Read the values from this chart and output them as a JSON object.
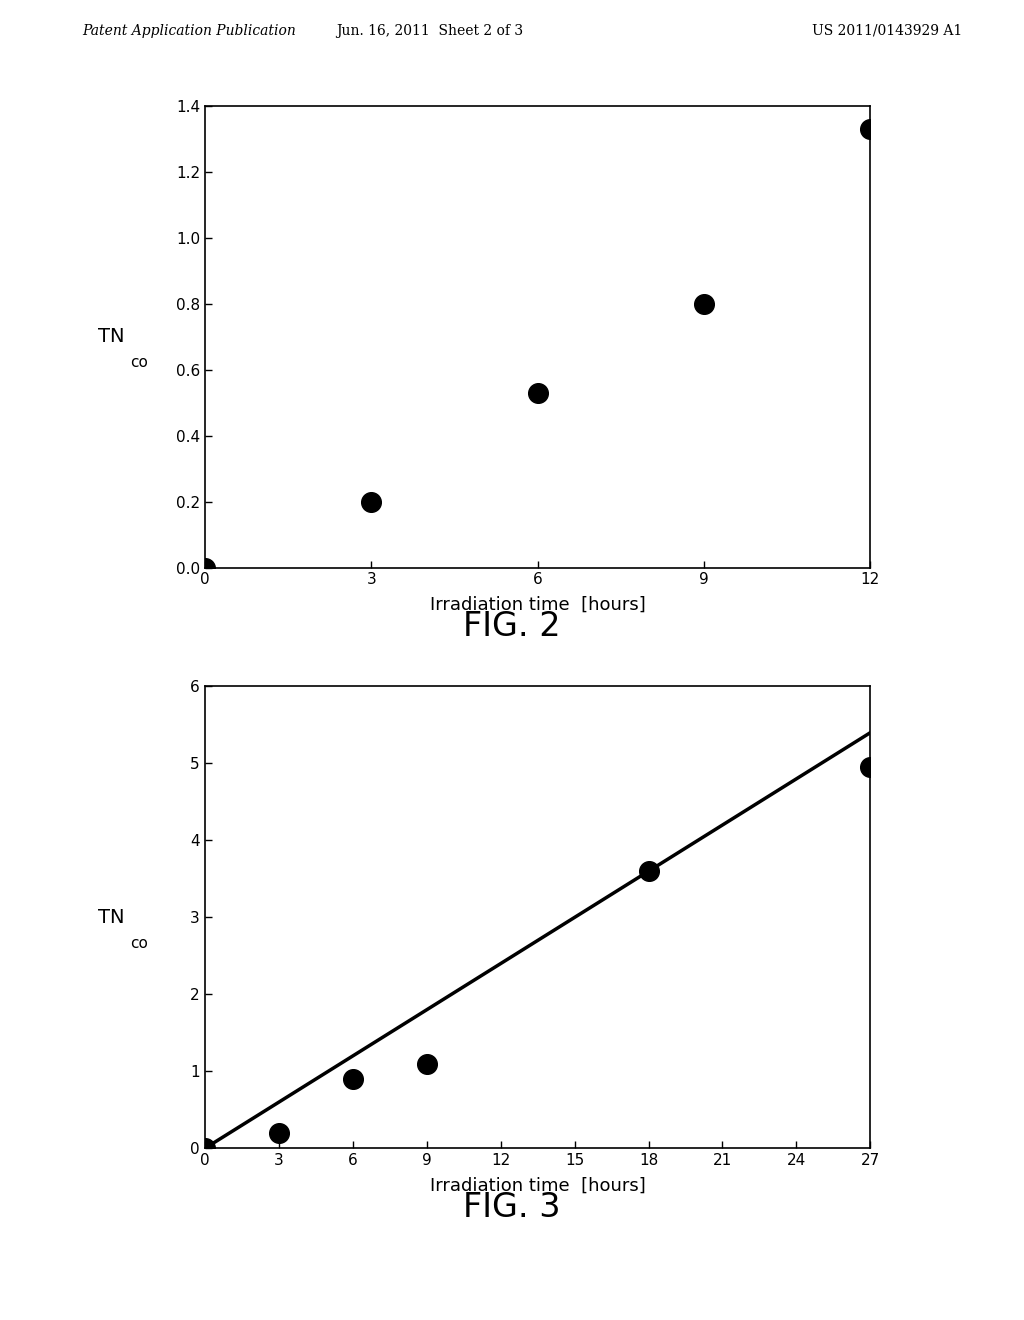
{
  "fig2": {
    "x": [
      0,
      3,
      6,
      9,
      12
    ],
    "y": [
      0.0,
      0.2,
      0.53,
      0.8,
      1.33
    ],
    "xlim": [
      0,
      12
    ],
    "ylim": [
      0,
      1.4
    ],
    "xticks": [
      0,
      3,
      6,
      9,
      12
    ],
    "yticks": [
      0,
      0.2,
      0.4,
      0.6,
      0.8,
      1.0,
      1.2,
      1.4
    ],
    "xlabel": "Irradiation time  [hours]",
    "ylabel_main": "TN",
    "ylabel_sub": "co",
    "caption": "FIG. 2"
  },
  "fig3": {
    "x": [
      0,
      3,
      6,
      9,
      18,
      27
    ],
    "y": [
      0.0,
      0.2,
      0.9,
      1.1,
      3.6,
      4.95
    ],
    "line_x": [
      0,
      27
    ],
    "line_y": [
      0.0,
      5.4
    ],
    "xlim": [
      0,
      27
    ],
    "ylim": [
      0,
      6
    ],
    "xticks": [
      0,
      3,
      6,
      9,
      12,
      15,
      18,
      21,
      24,
      27
    ],
    "yticks": [
      0,
      1,
      2,
      3,
      4,
      5,
      6
    ],
    "xlabel": "Irradiation time  [hours]",
    "ylabel_main": "TN",
    "ylabel_sub": "co",
    "caption": "FIG. 3"
  },
  "header_left": "Patent Application Publication",
  "header_center": "Jun. 16, 2011  Sheet 2 of 3",
  "header_right": "US 2011/0143929 A1",
  "bg_color": "#ffffff",
  "dot_color": "#000000",
  "line_color": "#000000",
  "dot_size": 200,
  "font_size_axis_label": 13,
  "font_size_tick": 11,
  "font_size_caption": 24,
  "font_size_header": 10
}
